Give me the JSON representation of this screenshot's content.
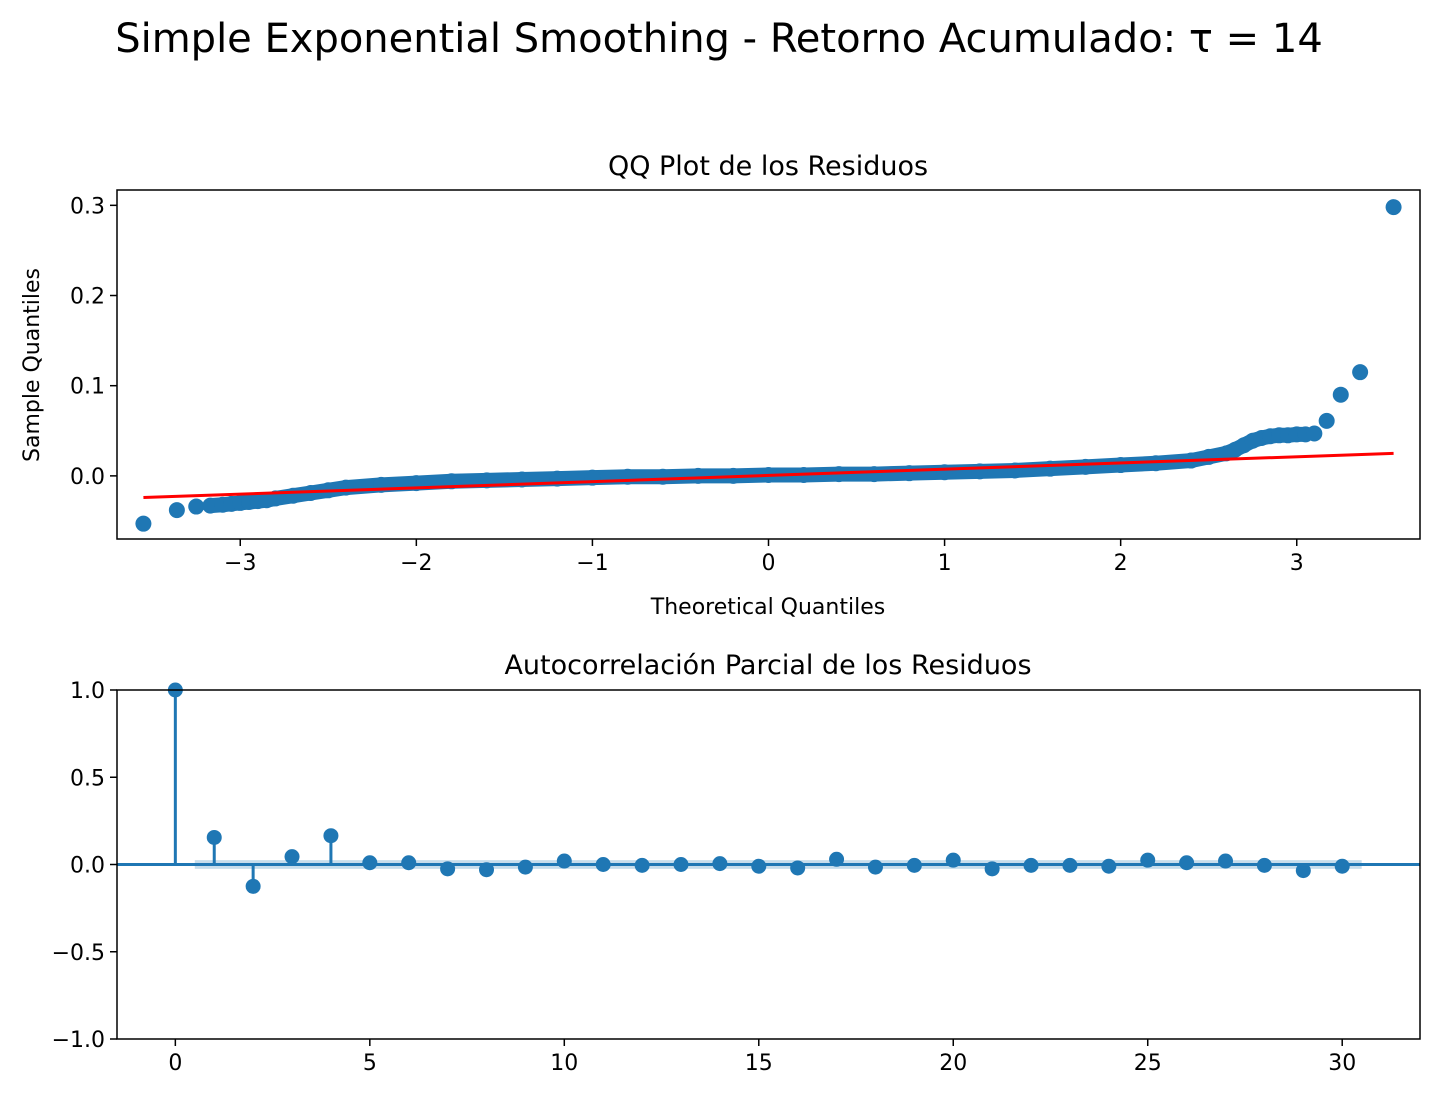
{
  "figure": {
    "suptitle": "Simple Exponential Smoothing - Retorno Acumulado: τ = 14"
  },
  "chart_data": [
    {
      "type": "scatter",
      "title": "QQ Plot de los Residuos",
      "xlabel": "Theoretical Quantiles",
      "ylabel": "Sample Quantiles",
      "xlim": [
        -3.7,
        3.7
      ],
      "ylim": [
        -0.07,
        0.317
      ],
      "xticks": [
        -3,
        -2,
        -1,
        0,
        1,
        2,
        3
      ],
      "xtick_labels": [
        "−3",
        "−2",
        "−1",
        "0",
        "1",
        "2",
        "3"
      ],
      "yticks": [
        0.0,
        0.1,
        0.2,
        0.3
      ],
      "ytick_labels": [
        "0.0",
        "0.1",
        "0.2",
        "0.3"
      ],
      "grid": false,
      "point_color": "#1f77b4",
      "line_color": "#ff0000",
      "reference_line": {
        "x": [
          -3.55,
          3.55
        ],
        "y": [
          -0.024,
          0.025
        ]
      },
      "points": [
        [
          -3.55,
          -0.053
        ],
        [
          -3.36,
          -0.038
        ],
        [
          -3.25,
          -0.034
        ],
        [
          -3.17,
          -0.033
        ],
        [
          -3.1,
          -0.032
        ],
        [
          -3.05,
          -0.031
        ],
        [
          -3.0,
          -0.03
        ],
        [
          -2.95,
          -0.029
        ],
        [
          -2.9,
          -0.028
        ],
        [
          -2.85,
          -0.027
        ],
        [
          -2.8,
          -0.025
        ],
        [
          -2.7,
          -0.022
        ],
        [
          -2.6,
          -0.019
        ],
        [
          -2.5,
          -0.016
        ],
        [
          -2.4,
          -0.013
        ],
        [
          -2.2,
          -0.01
        ],
        [
          -2.0,
          -0.008
        ],
        [
          -1.8,
          -0.006
        ],
        [
          -1.6,
          -0.005
        ],
        [
          -1.4,
          -0.004
        ],
        [
          -1.2,
          -0.003
        ],
        [
          -1.0,
          -0.002
        ],
        [
          -0.8,
          -0.001
        ],
        [
          -0.6,
          -0.001
        ],
        [
          -0.4,
          0.0
        ],
        [
          -0.2,
          0.0
        ],
        [
          0.0,
          0.001
        ],
        [
          0.2,
          0.001
        ],
        [
          0.4,
          0.002
        ],
        [
          0.6,
          0.002
        ],
        [
          0.8,
          0.003
        ],
        [
          1.0,
          0.004
        ],
        [
          1.2,
          0.005
        ],
        [
          1.4,
          0.006
        ],
        [
          1.6,
          0.008
        ],
        [
          1.8,
          0.01
        ],
        [
          2.0,
          0.012
        ],
        [
          2.2,
          0.014
        ],
        [
          2.4,
          0.017
        ],
        [
          2.5,
          0.021
        ],
        [
          2.6,
          0.025
        ],
        [
          2.65,
          0.029
        ],
        [
          2.7,
          0.034
        ],
        [
          2.75,
          0.039
        ],
        [
          2.8,
          0.042
        ],
        [
          2.85,
          0.044
        ],
        [
          2.9,
          0.045
        ],
        [
          2.95,
          0.045
        ],
        [
          3.0,
          0.046
        ],
        [
          3.05,
          0.046
        ],
        [
          3.1,
          0.047
        ],
        [
          3.17,
          0.061
        ],
        [
          3.25,
          0.09
        ],
        [
          3.36,
          0.115
        ],
        [
          3.55,
          0.298
        ]
      ]
    },
    {
      "type": "stem",
      "title": "Autocorrelación Parcial de los Residuos",
      "xlim": [
        -1.5,
        32
      ],
      "ylim": [
        -1.0,
        1.0
      ],
      "xticks": [
        0,
        5,
        10,
        15,
        20,
        25,
        30
      ],
      "xtick_labels": [
        "0",
        "5",
        "10",
        "15",
        "20",
        "25",
        "30"
      ],
      "yticks": [
        1.0,
        0.5,
        0.0,
        -0.5,
        -1.0
      ],
      "ytick_labels": [
        "1.0",
        "0.5",
        "0.0",
        "−0.5",
        "−1.0"
      ],
      "grid": false,
      "color": "#1f77b4",
      "confidence_band": 0.025,
      "lags": [
        0,
        1,
        2,
        3,
        4,
        5,
        6,
        7,
        8,
        9,
        10,
        11,
        12,
        13,
        14,
        15,
        16,
        17,
        18,
        19,
        20,
        21,
        22,
        23,
        24,
        25,
        26,
        27,
        28,
        29,
        30
      ],
      "values": [
        1.0,
        0.155,
        -0.125,
        0.045,
        0.165,
        0.01,
        0.01,
        -0.025,
        -0.03,
        -0.015,
        0.02,
        0.0,
        -0.005,
        0.0,
        0.005,
        -0.01,
        -0.02,
        0.03,
        -0.015,
        -0.005,
        0.025,
        -0.025,
        -0.005,
        -0.005,
        -0.01,
        0.025,
        0.01,
        0.02,
        -0.005,
        -0.035,
        -0.01
      ]
    }
  ]
}
